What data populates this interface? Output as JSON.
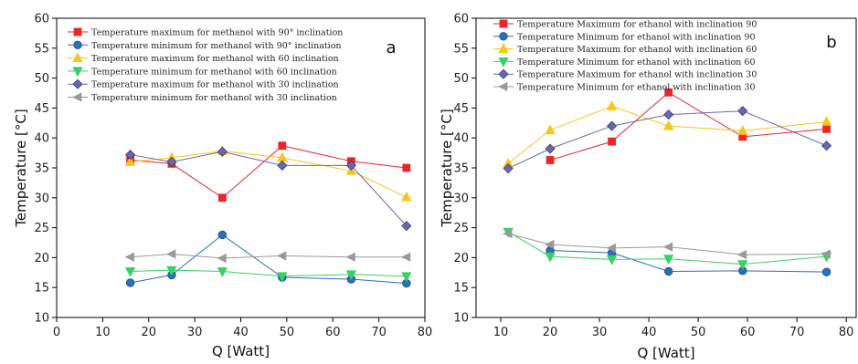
{
  "chart_data": [
    {
      "type": "line",
      "panel_label": "a",
      "xlabel": "Q [Watt]",
      "ylabel": "Temperature [°C]",
      "xlim": [
        0,
        80
      ],
      "ylim": [
        10,
        60
      ],
      "x_ticks": [
        0,
        10,
        20,
        30,
        40,
        50,
        60,
        70,
        80
      ],
      "y_ticks": [
        10,
        15,
        20,
        25,
        30,
        35,
        40,
        45,
        50,
        55,
        60
      ],
      "legend_position": "top-left",
      "series": [
        {
          "name": "Temperature maximum for methanol with 90° inclination",
          "color": "#e8262a",
          "marker": "square",
          "x": [
            16,
            25,
            36,
            49,
            64,
            76
          ],
          "y": [
            36.3,
            35.7,
            30.0,
            38.7,
            36.1,
            35.0
          ]
        },
        {
          "name": "Temperature minimum for methanol with 90° inclination",
          "color": "#2c6fb5",
          "marker": "circle",
          "x": [
            16,
            25,
            36,
            49,
            64,
            76
          ],
          "y": [
            15.8,
            17.1,
            23.8,
            16.7,
            16.4,
            15.7
          ]
        },
        {
          "name": "Temperature maximum for methanol with 60 inclination",
          "color": "#f8c51c",
          "marker": "triangle-up",
          "x": [
            16,
            25,
            36,
            49,
            64,
            76
          ],
          "y": [
            36.0,
            36.7,
            37.8,
            36.7,
            34.5,
            30.1
          ]
        },
        {
          "name": "Temperature minimum for methanol with 60 inclination",
          "color": "#39d067",
          "marker": "triangle-down",
          "x": [
            16,
            25,
            36,
            49,
            64,
            76
          ],
          "y": [
            17.7,
            17.9,
            17.7,
            16.9,
            17.2,
            16.9
          ]
        },
        {
          "name": "Temperature maximum for methanol with 30 inclination",
          "color": "#6a68ad",
          "marker": "diamond",
          "x": [
            16,
            25,
            36,
            49,
            64,
            76
          ],
          "y": [
            37.2,
            36.0,
            37.7,
            35.4,
            35.4,
            25.3
          ]
        },
        {
          "name": "Temperature minimum for methanol with 30 inclination",
          "color": "#9a9a9a",
          "marker": "triangle-left",
          "x": [
            16,
            25,
            36,
            49,
            64,
            76
          ],
          "y": [
            20.1,
            20.6,
            19.9,
            20.3,
            20.1,
            20.1
          ]
        }
      ]
    },
    {
      "type": "line",
      "panel_label": "b",
      "xlabel": "Q [Watt]",
      "ylabel": "Temperature [°C]",
      "xlim": [
        5,
        82
      ],
      "ylim": [
        10,
        60
      ],
      "x_ticks": [
        10,
        20,
        30,
        40,
        50,
        60,
        70,
        80
      ],
      "y_ticks": [
        10,
        15,
        20,
        25,
        30,
        35,
        40,
        45,
        50,
        55,
        60
      ],
      "legend_position": "top-left",
      "series": [
        {
          "name": "Temperature Maximum for ethanol with inclination 90",
          "color": "#e8262a",
          "marker": "square",
          "x": [
            20,
            32.5,
            44,
            59,
            76
          ],
          "y": [
            36.3,
            39.4,
            47.6,
            40.2,
            41.5
          ]
        },
        {
          "name": "Temperature Minimum for ethanol with inclination 90",
          "color": "#2c6fb5",
          "marker": "circle",
          "x": [
            20,
            32.5,
            44,
            59,
            76
          ],
          "y": [
            21.2,
            20.8,
            17.7,
            17.8,
            17.6
          ]
        },
        {
          "name": "Temperature Maximum for ethanol with inclination 60",
          "color": "#f8c51c",
          "marker": "triangle-up",
          "x": [
            11.5,
            20,
            32.5,
            44,
            59,
            76
          ],
          "y": [
            35.7,
            41.3,
            45.3,
            42.0,
            41.2,
            42.7
          ]
        },
        {
          "name": "Temperature Minimum for ethanol with inclination 60",
          "color": "#39d067",
          "marker": "triangle-down",
          "x": [
            11.5,
            20,
            32.5,
            44,
            59,
            76
          ],
          "y": [
            24.3,
            20.2,
            19.7,
            19.8,
            18.9,
            20.2
          ]
        },
        {
          "name": "Temperature Maximum for ethanol with inclination 30",
          "color": "#6a68ad",
          "marker": "diamond",
          "x": [
            11.5,
            20,
            32.5,
            44,
            59,
            76
          ],
          "y": [
            34.9,
            38.2,
            42.0,
            43.9,
            44.5,
            38.7
          ]
        },
        {
          "name": "Temperature Minimum for ethanol with inclination 30",
          "color": "#9a9a9a",
          "marker": "triangle-left",
          "x": [
            11.5,
            20,
            32.5,
            44,
            59,
            76
          ],
          "y": [
            24.0,
            22.2,
            21.6,
            21.8,
            20.5,
            20.6
          ]
        }
      ]
    }
  ]
}
